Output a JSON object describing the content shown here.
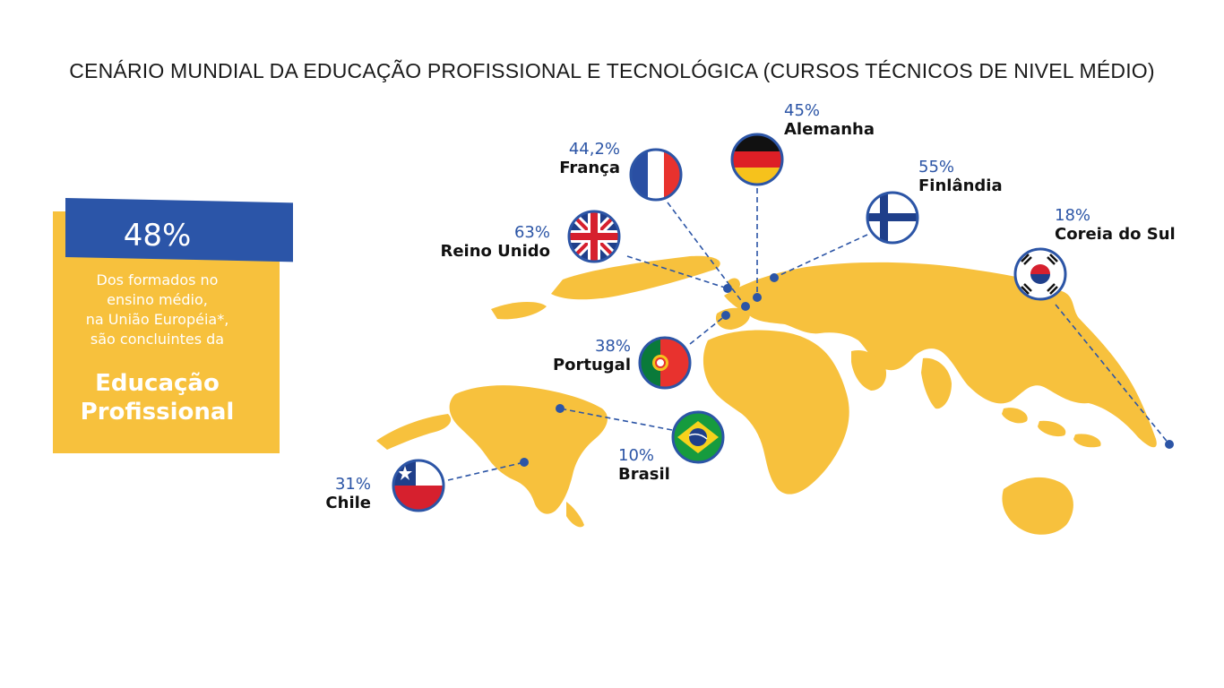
{
  "title": "CENÁRIO MUNDIAL DA EDUCAÇÃO PROFISSIONAL E TECNOLÓGICA (CURSOS TÉCNICOS DE NIVEL MÉDIO)",
  "card": {
    "percent": "48%",
    "lines": [
      "Dos formados no",
      "ensino médio,",
      "na União Européia*,",
      "são concluintes da"
    ],
    "highlight": [
      "Educação",
      "Profissional"
    ]
  },
  "colors": {
    "map": "#f7c13d",
    "accent": "#2c55a6"
  },
  "countries": [
    {
      "id": "franca",
      "percent": "44,2%",
      "name": "França",
      "flag": "france-flag"
    },
    {
      "id": "alemanha",
      "percent": "45%",
      "name": "Alemanha",
      "flag": "germany-flag"
    },
    {
      "id": "finlandia",
      "percent": "55%",
      "name": "Finlândia",
      "flag": "finland-flag"
    },
    {
      "id": "coreia",
      "percent": "18%",
      "name": "Coreia do Sul",
      "flag": "south-korea-flag"
    },
    {
      "id": "reino-unido",
      "percent": "63%",
      "name": "Reino Unido",
      "flag": "uk-flag"
    },
    {
      "id": "portugal",
      "percent": "38%",
      "name": "Portugal",
      "flag": "portugal-flag"
    },
    {
      "id": "brasil",
      "percent": "10%",
      "name": "Brasil",
      "flag": "brazil-flag"
    },
    {
      "id": "chile",
      "percent": "31%",
      "name": "Chile",
      "flag": "chile-flag"
    }
  ]
}
